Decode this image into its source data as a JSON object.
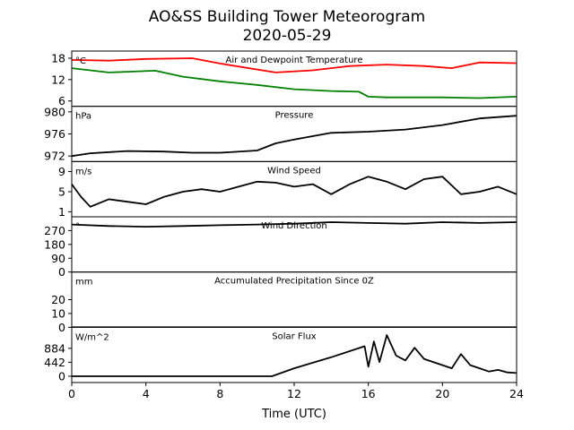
{
  "figure": {
    "title_line1": "AO&SS Building Tower Meteorogram",
    "title_line2": "2020-05-29",
    "xlabel": "Time (UTC)",
    "x_ticks": [
      "0",
      "4",
      "8",
      "12",
      "16",
      "20",
      "24"
    ]
  },
  "chart_data": [
    {
      "type": "line",
      "title": "Air and Dewpoint Temperature",
      "unit": "°C",
      "xlim": [
        0,
        24
      ],
      "ylim": [
        4.5,
        20
      ],
      "y_ticks": [
        18,
        12,
        6
      ],
      "series": [
        {
          "color": "#ff0000",
          "x": [
            0,
            2,
            4,
            6.5,
            8,
            11,
            13,
            15,
            17,
            19,
            20.5,
            22,
            24
          ],
          "y": [
            17.5,
            17.3,
            17.8,
            18.0,
            16.5,
            14.0,
            14.6,
            15.8,
            16.2,
            15.8,
            15.2,
            16.8,
            16.6
          ]
        },
        {
          "color": "#008000",
          "x": [
            0,
            2,
            3,
            4.5,
            6,
            8,
            10,
            12,
            14,
            15.5,
            16,
            17,
            20,
            22,
            24
          ],
          "y": [
            15.2,
            14.0,
            14.2,
            14.5,
            12.8,
            11.5,
            10.5,
            9.3,
            8.8,
            8.6,
            7.2,
            7.0,
            7.0,
            6.8,
            7.2
          ]
        }
      ]
    },
    {
      "type": "line",
      "title": "Pressure",
      "unit": "hPa",
      "xlim": [
        0,
        24
      ],
      "ylim": [
        971,
        981
      ],
      "y_ticks": [
        980,
        976,
        972
      ],
      "series": [
        {
          "color": "#000000",
          "x": [
            0,
            1,
            3,
            5,
            6.5,
            8,
            10,
            11,
            12,
            13,
            14,
            16,
            18,
            20,
            22,
            24
          ],
          "y": [
            972.0,
            972.5,
            972.9,
            972.8,
            972.6,
            972.6,
            973.0,
            974.3,
            975.0,
            975.6,
            976.2,
            976.4,
            976.8,
            977.6,
            978.8,
            979.3
          ]
        }
      ]
    },
    {
      "type": "line",
      "title": "Wind Speed",
      "unit": "m/s",
      "xlim": [
        0,
        24
      ],
      "ylim": [
        0,
        11
      ],
      "y_ticks": [
        9,
        5,
        1
      ],
      "series": [
        {
          "color": "#000000",
          "x": [
            0,
            0.5,
            1,
            2,
            3,
            4,
            5,
            6,
            7,
            8,
            9,
            10,
            11,
            12,
            13,
            14,
            15,
            16,
            17,
            18,
            19,
            20,
            21,
            22,
            23,
            24
          ],
          "y": [
            6.5,
            4.0,
            2.0,
            3.5,
            3.0,
            2.5,
            4.0,
            5.0,
            5.5,
            5.0,
            6.0,
            7.0,
            6.8,
            6.0,
            6.5,
            4.5,
            6.5,
            8.0,
            7.0,
            5.5,
            7.5,
            8.0,
            4.5,
            5.0,
            6.0,
            4.5
          ]
        }
      ]
    },
    {
      "type": "line",
      "title": "Wind Direction",
      "unit": "°",
      "xlim": [
        0,
        24
      ],
      "ylim": [
        0,
        360
      ],
      "y_ticks": [
        270,
        180,
        90,
        0
      ],
      "series": [
        {
          "color": "#000000",
          "x": [
            0,
            2,
            4,
            6,
            8,
            10,
            12,
            14,
            16,
            18,
            20,
            22,
            24
          ],
          "y": [
            310,
            300,
            295,
            300,
            305,
            310,
            315,
            325,
            320,
            315,
            325,
            320,
            325
          ]
        }
      ]
    },
    {
      "type": "line",
      "title": "Accumulated Precipitation Since 0Z",
      "unit": "mm",
      "xlim": [
        0,
        24
      ],
      "ylim": [
        0,
        40
      ],
      "y_ticks": [
        20,
        10,
        0
      ],
      "series": [
        {
          "color": "#000000",
          "x": [
            0,
            24
          ],
          "y": [
            0,
            0
          ]
        }
      ]
    },
    {
      "type": "line",
      "title": "Solar Flux",
      "unit": "W/m^2",
      "xlim": [
        0,
        24
      ],
      "ylim": [
        -200,
        1550
      ],
      "y_ticks": [
        884,
        442,
        0
      ],
      "series": [
        {
          "color": "#000000",
          "x": [
            0,
            10.8,
            12,
            14,
            15.8,
            16,
            16.3,
            16.6,
            17,
            17.5,
            18,
            18.5,
            19,
            19.5,
            20,
            20.5,
            21,
            21.5,
            22,
            22.5,
            23,
            23.5,
            24
          ],
          "y": [
            0,
            0,
            250,
            600,
            950,
            300,
            1100,
            450,
            1300,
            650,
            500,
            900,
            550,
            450,
            350,
            250,
            700,
            350,
            250,
            150,
            200,
            120,
            100
          ]
        }
      ]
    }
  ]
}
